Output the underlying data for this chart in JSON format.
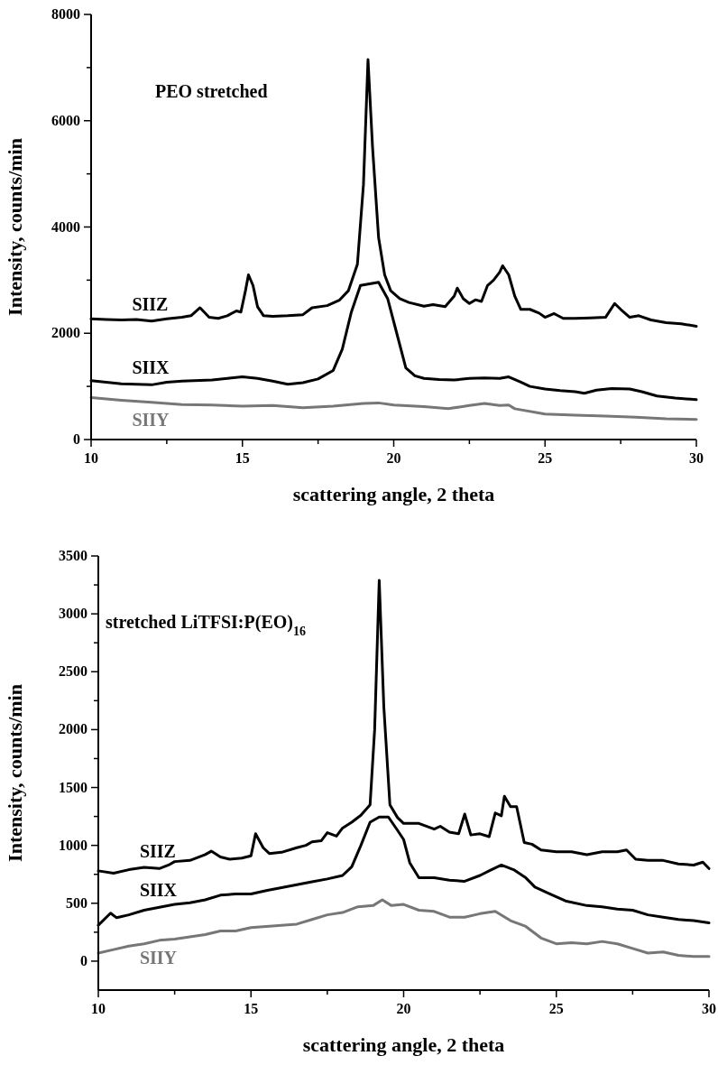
{
  "chart_data": [
    {
      "type": "line",
      "title": "PEO stretched",
      "xlabel": "scattering angle, 2 theta",
      "ylabel": "Intensity, counts/min",
      "xlim": [
        10,
        30
      ],
      "ylim": [
        0,
        8000
      ],
      "xticks": [
        10,
        {
          "value": 12.5,
          "label": null
        },
        15,
        {
          "value": 17.5,
          "label": null
        },
        20,
        {
          "value": 22.5,
          "label": null
        },
        25,
        {
          "value": 27.5,
          "label": null
        },
        30
      ],
      "yticks": [
        0,
        {
          "value": 1000,
          "label": null
        },
        2000,
        {
          "value": 3000,
          "label": null
        },
        4000,
        {
          "value": 5000,
          "label": null
        },
        6000,
        {
          "value": 7000,
          "label": null
        },
        8000
      ],
      "grid": false,
      "line_style": "solid",
      "series": [
        {
          "name": "SIIZ",
          "color": "#000000",
          "x": [
            10,
            10.5,
            11,
            11.5,
            12,
            12.5,
            13,
            13.3,
            13.6,
            13.9,
            14.2,
            14.5,
            14.8,
            14.95,
            15.1,
            15.2,
            15.35,
            15.5,
            15.7,
            16,
            16.5,
            17,
            17.3,
            17.8,
            18.2,
            18.5,
            18.8,
            19,
            19.15,
            19.3,
            19.5,
            19.7,
            19.9,
            20.2,
            20.5,
            21,
            21.3,
            21.7,
            22,
            22.1,
            22.3,
            22.5,
            22.7,
            22.9,
            23.1,
            23.3,
            23.5,
            23.6,
            23.8,
            24,
            24.2,
            24.5,
            24.8,
            25,
            25.3,
            25.6,
            26,
            26.5,
            27,
            27.3,
            27.5,
            27.8,
            28.1,
            28.5,
            29,
            29.5,
            30
          ],
          "values": [
            2270,
            2260,
            2250,
            2260,
            2230,
            2270,
            2300,
            2330,
            2480,
            2300,
            2280,
            2330,
            2420,
            2400,
            2800,
            3100,
            2900,
            2500,
            2330,
            2320,
            2330,
            2350,
            2480,
            2520,
            2620,
            2800,
            3300,
            4800,
            7150,
            5500,
            3800,
            3100,
            2800,
            2650,
            2580,
            2510,
            2540,
            2500,
            2700,
            2850,
            2650,
            2560,
            2630,
            2600,
            2900,
            3000,
            3150,
            3270,
            3100,
            2700,
            2450,
            2450,
            2380,
            2300,
            2370,
            2280,
            2280,
            2290,
            2300,
            2560,
            2450,
            2300,
            2330,
            2250,
            2200,
            2180,
            2130
          ]
        },
        {
          "name": "SIIX",
          "color": "#000000",
          "x": [
            10,
            10.5,
            11,
            12,
            12.5,
            13,
            14,
            14.5,
            15,
            15.5,
            16,
            16.5,
            17,
            17.5,
            18,
            18.3,
            18.6,
            18.9,
            19.2,
            19.5,
            19.8,
            20.1,
            20.4,
            20.7,
            21,
            21.5,
            22,
            22.5,
            23,
            23.5,
            23.8,
            24.2,
            24.5,
            25,
            25.5,
            26,
            26.3,
            26.7,
            27.2,
            27.8,
            28.2,
            28.7,
            29.3,
            30
          ],
          "values": [
            1110,
            1080,
            1050,
            1030,
            1080,
            1100,
            1120,
            1150,
            1180,
            1150,
            1100,
            1040,
            1070,
            1140,
            1300,
            1700,
            2400,
            2900,
            2930,
            2960,
            2650,
            2000,
            1350,
            1200,
            1150,
            1130,
            1120,
            1150,
            1160,
            1150,
            1180,
            1080,
            1000,
            950,
            920,
            900,
            870,
            930,
            960,
            950,
            900,
            820,
            780,
            750
          ]
        },
        {
          "name": "SIIY",
          "color": "#777777",
          "x": [
            10,
            11,
            12,
            13,
            14,
            15,
            16,
            17,
            18,
            19,
            19.5,
            20,
            21,
            21.8,
            22.5,
            23,
            23.5,
            23.8,
            24,
            25,
            26,
            27,
            28,
            29,
            30
          ],
          "values": [
            790,
            740,
            700,
            660,
            650,
            630,
            640,
            600,
            630,
            680,
            690,
            650,
            620,
            580,
            640,
            680,
            640,
            650,
            580,
            480,
            460,
            440,
            420,
            390,
            380
          ]
        }
      ]
    },
    {
      "type": "line",
      "title": "stretched LiTFSI:P(EO)$_{16}$",
      "xlabel": "scattering angle, 2 theta",
      "ylabel": "Intensity, counts/min",
      "xlim": [
        10,
        30
      ],
      "ylim": [
        -250,
        3500
      ],
      "xticks": [
        10,
        {
          "value": 12.5,
          "label": null
        },
        15,
        {
          "value": 17.5,
          "label": null
        },
        20,
        {
          "value": 22.5,
          "label": null
        },
        25,
        {
          "value": 27.5,
          "label": null
        },
        30
      ],
      "yticks": [
        0,
        {
          "value": 250,
          "label": null
        },
        500,
        {
          "value": 750,
          "label": null
        },
        1000,
        {
          "value": 1250,
          "label": null
        },
        1500,
        {
          "value": 1750,
          "label": null
        },
        2000,
        {
          "value": 2250,
          "label": null
        },
        2500,
        {
          "value": 2750,
          "label": null
        },
        3000,
        {
          "value": 3250,
          "label": null
        },
        3500
      ],
      "grid": false,
      "line_style": "solid",
      "series": [
        {
          "name": "SIIZ",
          "color": "#000000",
          "x": [
            10,
            10.5,
            11,
            11.5,
            12,
            12.3,
            12.5,
            13,
            13.5,
            13.7,
            14,
            14.3,
            14.7,
            15,
            15.15,
            15.4,
            15.6,
            16,
            16.5,
            16.8,
            17,
            17.3,
            17.5,
            17.8,
            18,
            18.3,
            18.6,
            18.9,
            19.05,
            19.2,
            19.35,
            19.55,
            19.8,
            20,
            20.5,
            21,
            21.2,
            21.5,
            21.8,
            22,
            22.2,
            22.5,
            22.8,
            23,
            23.2,
            23.3,
            23.5,
            23.7,
            23.95,
            24.2,
            24.5,
            25,
            25.5,
            26,
            26.5,
            27,
            27.3,
            27.6,
            28,
            28.5,
            29,
            29.5,
            29.8,
            30
          ],
          "values": [
            780,
            760,
            790,
            810,
            800,
            830,
            860,
            870,
            920,
            950,
            900,
            880,
            890,
            910,
            1100,
            980,
            930,
            940,
            980,
            1000,
            1030,
            1040,
            1110,
            1080,
            1150,
            1200,
            1260,
            1350,
            2000,
            3290,
            2200,
            1350,
            1240,
            1190,
            1190,
            1140,
            1165,
            1115,
            1100,
            1270,
            1090,
            1100,
            1075,
            1280,
            1255,
            1425,
            1335,
            1335,
            1025,
            1010,
            960,
            945,
            945,
            920,
            945,
            945,
            960,
            880,
            870,
            870,
            840,
            830,
            855,
            800
          ]
        },
        {
          "name": "SIIX",
          "color": "#000000",
          "x": [
            10,
            10.4,
            10.6,
            11,
            11.5,
            12,
            12.5,
            13,
            13.5,
            14,
            14.5,
            15,
            15.5,
            16,
            16.5,
            17,
            17.5,
            18,
            18.3,
            18.6,
            18.9,
            19.2,
            19.5,
            19.8,
            20,
            20.2,
            20.5,
            21,
            21.5,
            22,
            22.5,
            22.8,
            23.2,
            23.6,
            24,
            24.3,
            24.8,
            25.3,
            26,
            26.5,
            27,
            27.5,
            28,
            28.5,
            29,
            29.5,
            30
          ],
          "values": [
            310,
            415,
            375,
            400,
            440,
            465,
            490,
            505,
            530,
            570,
            580,
            580,
            610,
            635,
            660,
            685,
            710,
            740,
            815,
            1000,
            1200,
            1245,
            1245,
            1130,
            1050,
            850,
            720,
            720,
            700,
            690,
            740,
            780,
            830,
            790,
            720,
            640,
            580,
            520,
            480,
            470,
            450,
            440,
            400,
            380,
            360,
            350,
            330
          ]
        },
        {
          "name": "SIIY",
          "color": "#777777",
          "x": [
            10,
            10.5,
            11,
            11.5,
            12,
            12.5,
            13,
            13.5,
            14,
            14.5,
            15,
            15.5,
            16,
            16.5,
            17,
            17.5,
            18,
            18.5,
            19,
            19.3,
            19.6,
            20,
            20.5,
            21,
            21.5,
            22,
            22.5,
            23,
            23.5,
            24,
            24.5,
            25,
            25.5,
            26,
            26.5,
            27,
            27.5,
            28,
            28.5,
            29,
            29.5,
            30
          ],
          "values": [
            70,
            100,
            130,
            150,
            180,
            190,
            210,
            230,
            260,
            260,
            290,
            300,
            310,
            320,
            360,
            400,
            420,
            470,
            480,
            530,
            480,
            490,
            440,
            430,
            380,
            380,
            410,
            430,
            350,
            300,
            200,
            150,
            160,
            150,
            170,
            150,
            110,
            70,
            80,
            50,
            40,
            40
          ]
        }
      ]
    }
  ]
}
